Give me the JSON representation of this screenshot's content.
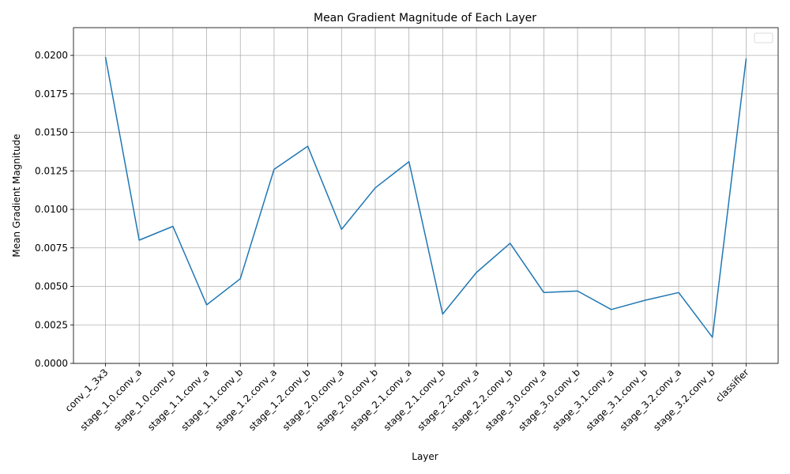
{
  "chart_data": {
    "type": "line",
    "title": "Mean Gradient Magnitude of Each Layer",
    "xlabel": "Layer",
    "ylabel": "Mean Gradient Magnitude",
    "categories": [
      "conv_1_3x3",
      "stage_1.0.conv_a",
      "stage_1.0.conv_b",
      "stage_1.1.conv_a",
      "stage_1.1.conv_b",
      "stage_1.2.conv_a",
      "stage_1.2.conv_b",
      "stage_2.0.conv_a",
      "stage_2.0.conv_b",
      "stage_2.1.conv_a",
      "stage_2.1.conv_b",
      "stage_2.2.conv_a",
      "stage_2.2.conv_b",
      "stage_3.0.conv_a",
      "stage_3.0.conv_b",
      "stage_3.1.conv_a",
      "stage_3.1.conv_b",
      "stage_3.2.conv_a",
      "stage_3.2.conv_b",
      "classifier"
    ],
    "series": [
      {
        "values": [
          0.0199,
          0.008,
          0.0089,
          0.0038,
          0.0055,
          0.0126,
          0.0141,
          0.0087,
          0.0114,
          0.0131,
          0.0032,
          0.0059,
          0.0078,
          0.0046,
          0.0047,
          0.0035,
          0.0041,
          0.0046,
          0.0017,
          0.0198
        ],
        "color": "#1f77b4"
      }
    ],
    "ylim": [
      0,
      0.0218
    ],
    "yticks": [
      "0.0000",
      "0.0025",
      "0.0050",
      "0.0075",
      "0.0100",
      "0.0125",
      "0.0150",
      "0.0175",
      "0.0200"
    ],
    "ytick_values": [
      0,
      0.0025,
      0.005,
      0.0075,
      0.01,
      0.0125,
      0.015,
      0.0175,
      0.02
    ],
    "grid": true,
    "legend": "top-right (empty)"
  }
}
